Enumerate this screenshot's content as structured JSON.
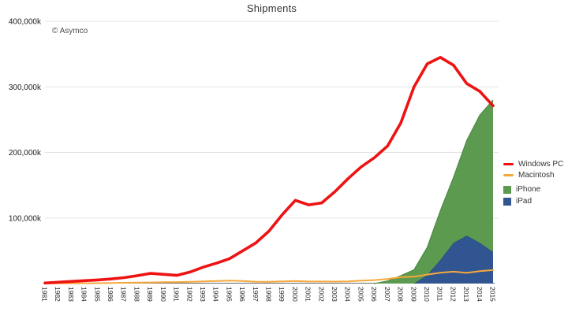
{
  "title": "Shipments",
  "watermark": "© Asymco",
  "chart_data": {
    "type": "area",
    "subtype": "stacked areas with overlaid lines",
    "title": "Shipments",
    "xlabel": "",
    "ylabel": "",
    "unit": "thousands (k)",
    "categories": [
      "1981",
      "1982",
      "1983",
      "1984",
      "1985",
      "1986",
      "1987",
      "1988",
      "1989",
      "1990",
      "1991",
      "1992",
      "1993",
      "1994",
      "1995",
      "1996",
      "1997",
      "1998",
      "1999",
      "2000",
      "2001",
      "2002",
      "2003",
      "2004",
      "2005",
      "2006",
      "2007",
      "2008",
      "2009",
      "2010",
      "2011",
      "2012",
      "2013",
      "2014",
      "2015"
    ],
    "ylim": [
      0,
      400000
    ],
    "ytick_values": [
      100000,
      200000,
      300000,
      400000
    ],
    "ytick_labels": [
      "100,000k",
      "200,000k",
      "300,000k",
      "400,000k"
    ],
    "grid": "horizontal",
    "legend_position": "right",
    "stack_order_bottom_to_top": [
      "iPad",
      "iPhone"
    ],
    "series": [
      {
        "name": "Windows PC",
        "type": "line",
        "color": "#ee1313",
        "values": [
          800,
          2000,
          3200,
          4500,
          5500,
          7000,
          9000,
          12000,
          15500,
          14000,
          12500,
          17500,
          25000,
          31000,
          38000,
          50000,
          62000,
          80000,
          105000,
          127000,
          120000,
          123000,
          140000,
          160000,
          178000,
          192000,
          210000,
          245000,
          300000,
          335000,
          345000,
          333000,
          305000,
          293000,
          271000
        ]
      },
      {
        "name": "Macintosh",
        "type": "line",
        "color": "#f6a83c",
        "values": [
          100,
          200,
          300,
          500,
          600,
          800,
          1200,
          1500,
          1700,
          2000,
          2300,
          2600,
          3300,
          3800,
          4500,
          4000,
          2900,
          2800,
          3400,
          3800,
          3100,
          3100,
          3000,
          3300,
          4500,
          5300,
          7100,
          9700,
          10400,
          13700,
          16500,
          18100,
          16300,
          18900,
          20500
        ]
      },
      {
        "name": "iPhone",
        "type": "area",
        "color": "#5c9a50",
        "edge_color": "#4d8a42",
        "values": [
          0,
          0,
          0,
          0,
          0,
          0,
          0,
          0,
          0,
          0,
          0,
          0,
          0,
          0,
          0,
          0,
          0,
          0,
          0,
          0,
          0,
          0,
          0,
          0,
          0,
          0,
          4000,
          12000,
          21000,
          42000,
          75000,
          100000,
          145000,
          195000,
          232000
        ]
      },
      {
        "name": "iPad",
        "type": "area",
        "color": "#305590",
        "edge_color": "#294a7e",
        "values": [
          0,
          0,
          0,
          0,
          0,
          0,
          0,
          0,
          0,
          0,
          0,
          0,
          0,
          0,
          0,
          0,
          0,
          0,
          0,
          0,
          0,
          0,
          0,
          0,
          0,
          0,
          0,
          0,
          0,
          13000,
          36000,
          62000,
          73000,
          62000,
          48000
        ]
      }
    ],
    "grid_color": "#e3e3e3",
    "axis_line_color": "#666666",
    "tick_label_color": "#222222"
  }
}
